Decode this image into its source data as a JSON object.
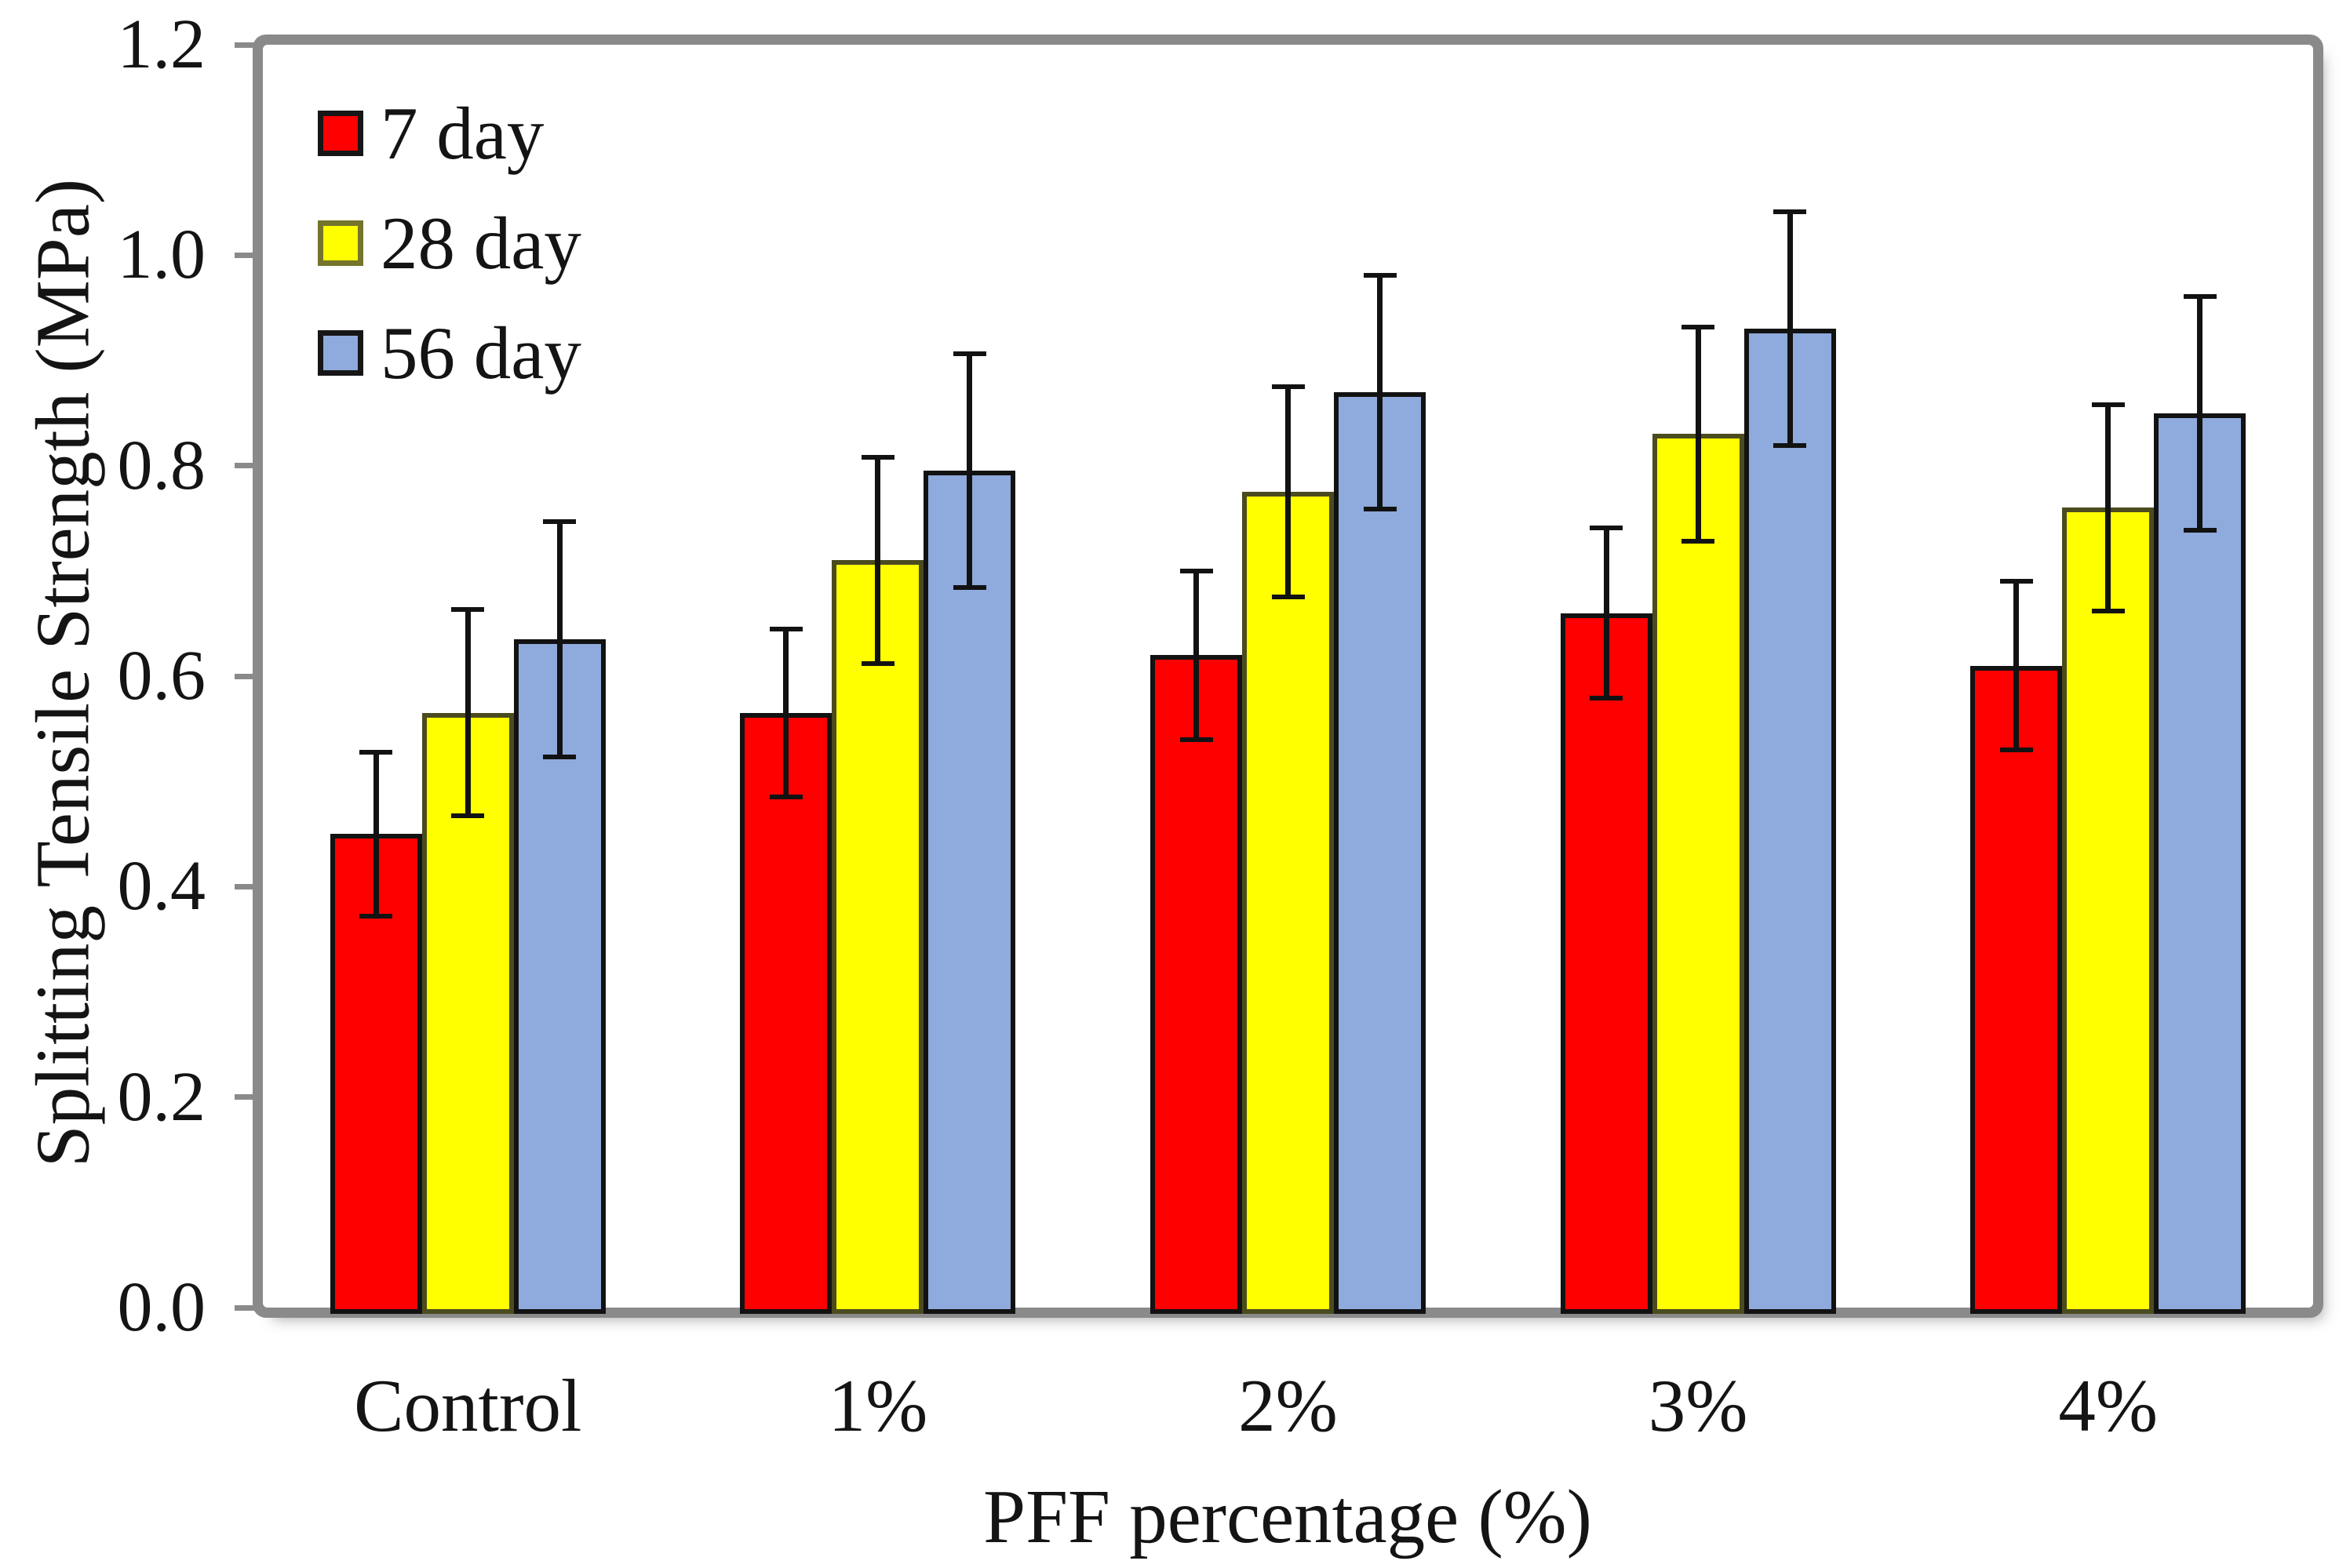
{
  "chart_data": {
    "type": "bar",
    "xlabel": "PFF percentage (%)",
    "ylabel": "Splitting Tensile Strength (MPa)",
    "categories": [
      "Control",
      "1%",
      "2%",
      "3%",
      "4%"
    ],
    "series": [
      {
        "name": "7 day",
        "color": "#FE0000",
        "bar_border": "#121212",
        "legend_border": "#161616",
        "values": [
          0.45,
          0.565,
          0.62,
          0.66,
          0.61
        ],
        "errors": [
          0.078,
          0.08,
          0.08,
          0.081,
          0.08
        ]
      },
      {
        "name": "28 day",
        "color": "#FFFF00",
        "bar_border": "#4b4b20",
        "legend_border": "#74742c",
        "values": [
          0.565,
          0.71,
          0.775,
          0.83,
          0.76
        ],
        "errors": [
          0.098,
          0.098,
          0.1,
          0.102,
          0.098
        ]
      },
      {
        "name": "56 day",
        "color": "#8FAADC",
        "bar_border": "#121212",
        "legend_border": "#161616",
        "values": [
          0.635,
          0.795,
          0.87,
          0.93,
          0.85
        ],
        "errors": [
          0.112,
          0.111,
          0.111,
          0.111,
          0.111
        ]
      }
    ],
    "ylim": [
      0,
      1.2
    ],
    "ytick_labels": [
      "0.0",
      "0.2",
      "0.4",
      "0.6",
      "0.8",
      "1.0",
      "1.2"
    ],
    "grid": false,
    "error_bars": true,
    "legend_position": "upper-left",
    "axis_color": "#8a8a8a",
    "text_color": "#141414"
  }
}
